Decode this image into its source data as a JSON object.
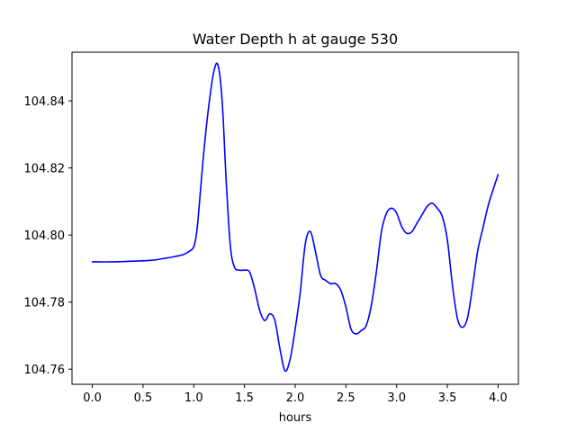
{
  "chart_data": {
    "type": "line",
    "title": "Water Depth h at gauge 530",
    "xlabel": "hours",
    "ylabel": "",
    "xlim": [
      -0.2,
      4.2
    ],
    "ylim": [
      104.7555,
      104.8545
    ],
    "grid": false,
    "legend": "none",
    "x_ticks": [
      {
        "value": 0.0,
        "label": "0.0"
      },
      {
        "value": 0.5,
        "label": "0.5"
      },
      {
        "value": 1.0,
        "label": "1.0"
      },
      {
        "value": 1.5,
        "label": "1.5"
      },
      {
        "value": 2.0,
        "label": "2.0"
      },
      {
        "value": 2.5,
        "label": "2.5"
      },
      {
        "value": 3.0,
        "label": "3.0"
      },
      {
        "value": 3.5,
        "label": "3.5"
      },
      {
        "value": 4.0,
        "label": "4.0"
      }
    ],
    "y_ticks": [
      {
        "value": 104.76,
        "label": "104.76"
      },
      {
        "value": 104.78,
        "label": "104.78"
      },
      {
        "value": 104.8,
        "label": "104.80"
      },
      {
        "value": 104.82,
        "label": "104.82"
      },
      {
        "value": 104.84,
        "label": "104.84"
      }
    ],
    "series": [
      {
        "color": "#0000ff",
        "x": [
          0.0,
          0.2,
          0.4,
          0.6,
          0.7,
          0.8,
          0.9,
          0.95,
          1.0,
          1.03,
          1.06,
          1.1,
          1.15,
          1.2,
          1.24,
          1.28,
          1.32,
          1.36,
          1.4,
          1.45,
          1.5,
          1.55,
          1.6,
          1.65,
          1.7,
          1.75,
          1.8,
          1.85,
          1.9,
          1.95,
          2.0,
          2.05,
          2.1,
          2.15,
          2.2,
          2.25,
          2.3,
          2.35,
          2.4,
          2.45,
          2.5,
          2.55,
          2.6,
          2.65,
          2.7,
          2.75,
          2.8,
          2.85,
          2.9,
          2.95,
          3.0,
          3.05,
          3.1,
          3.15,
          3.2,
          3.25,
          3.3,
          3.35,
          3.4,
          3.45,
          3.5,
          3.55,
          3.6,
          3.65,
          3.7,
          3.75,
          3.8,
          3.85,
          3.9,
          3.95,
          4.0
        ],
        "y": [
          104.792,
          104.792,
          104.7922,
          104.7925,
          104.793,
          104.7935,
          104.7942,
          104.795,
          104.7965,
          104.801,
          104.811,
          104.825,
          104.839,
          104.849,
          104.8505,
          104.84,
          104.816,
          104.797,
          104.7905,
          104.7895,
          104.7895,
          104.789,
          104.784,
          104.7775,
          104.7745,
          104.7765,
          104.7745,
          104.766,
          104.7595,
          104.763,
          104.772,
          104.783,
          104.7975,
          104.801,
          104.795,
          104.788,
          104.7865,
          104.7855,
          104.7855,
          104.7835,
          104.7785,
          104.772,
          104.7705,
          104.7715,
          104.773,
          104.779,
          104.789,
          104.801,
          104.8065,
          104.808,
          104.8065,
          104.8025,
          104.8005,
          104.801,
          104.8035,
          104.806,
          104.8085,
          104.8095,
          104.808,
          104.8055,
          104.7985,
          104.785,
          104.775,
          104.7725,
          104.7755,
          104.785,
          104.7955,
          104.802,
          104.8085,
          104.8135,
          104.818
        ]
      }
    ]
  }
}
